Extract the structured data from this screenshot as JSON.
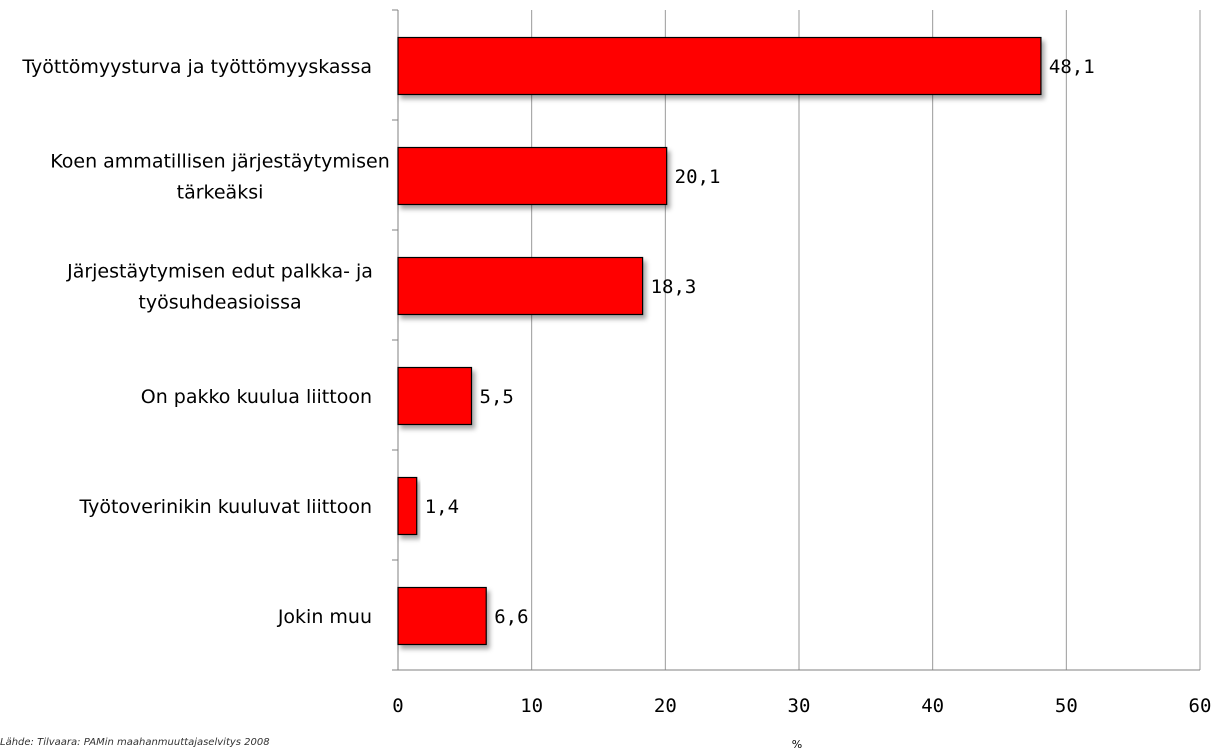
{
  "chart_data": {
    "type": "bar",
    "orientation": "horizontal",
    "categories": [
      [
        "Työttömyysturva ja työttömyyskassa"
      ],
      [
        "Koen ammatillisen järjestäytymisen",
        "tärkeäksi"
      ],
      [
        "Järjestäytymisen edut palkka- ja",
        "työsuhdeasioissa"
      ],
      [
        "On pakko kuulua liittoon"
      ],
      [
        "Työtoverinikin kuuluvat liittoon"
      ],
      [
        "Jokin muu"
      ]
    ],
    "values": [
      48.1,
      20.1,
      18.3,
      5.5,
      1.4,
      6.6
    ],
    "value_labels": [
      "48,1",
      "20,1",
      "18,3",
      "5,5",
      "1,4",
      "6,6"
    ],
    "xlim": [
      0,
      60
    ],
    "x_ticks": [
      0,
      10,
      20,
      30,
      40,
      50,
      60
    ],
    "xlabel": "%",
    "grid": "vertical",
    "legend": "none",
    "colors": {
      "bar": "#ff0000",
      "bar_border": "#000000",
      "bar_shadow": "#9a9a9a",
      "grid": "#9a9a9a",
      "axis": "#808080"
    }
  },
  "source_note": "Lähde: Tilvaara: PAMin maahanmuuttajaselvitys 2008"
}
